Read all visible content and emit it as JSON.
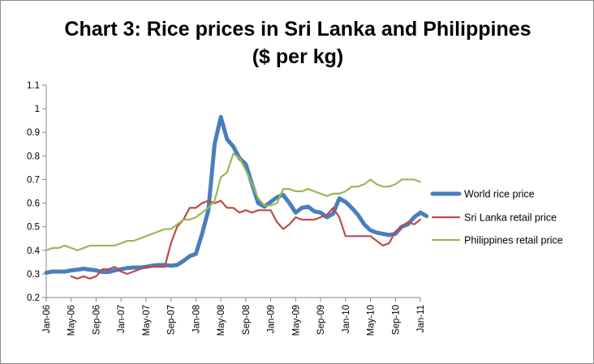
{
  "chart_data": {
    "type": "line",
    "title": "Chart 3: Rice prices in Sri Lanka and Philippines",
    "subtitle": "($ per kg)",
    "xlabel": "",
    "ylabel": "",
    "ylim": [
      0.2,
      1.1
    ],
    "yticks": [
      "0.2",
      "0.3",
      "0.4",
      "0.5",
      "0.6",
      "0.7",
      "0.8",
      "0.9",
      "1",
      "1.1"
    ],
    "grid": false,
    "legend_position": "right",
    "x_tick_labels": [
      "Jan-06",
      "May-06",
      "Sep-06",
      "Jan-07",
      "May-07",
      "Sep-07",
      "Jan-08",
      "May-08",
      "Sep-08",
      "Jan-09",
      "May-09",
      "Sep-09",
      "Jan-10",
      "May-10",
      "Sep-10",
      "Jan-11"
    ],
    "x_start": "2006-01",
    "series": [
      {
        "name": "World rice price",
        "color": "#4a7ebb",
        "start": "2006-01",
        "values": [
          0.305,
          0.31,
          0.31,
          0.31,
          0.315,
          0.318,
          0.322,
          0.318,
          0.315,
          0.308,
          0.308,
          0.315,
          0.32,
          0.325,
          0.327,
          0.327,
          0.33,
          0.335,
          0.338,
          0.338,
          0.335,
          0.338,
          0.355,
          0.375,
          0.385,
          0.47,
          0.57,
          0.85,
          0.965,
          0.87,
          0.84,
          0.79,
          0.765,
          0.68,
          0.6,
          0.585,
          0.605,
          0.625,
          0.635,
          0.6,
          0.56,
          0.58,
          0.585,
          0.565,
          0.56,
          0.54,
          0.555,
          0.62,
          0.605,
          0.58,
          0.55,
          0.51,
          0.485,
          0.475,
          0.47,
          0.465,
          0.47,
          0.5,
          0.51,
          0.54,
          0.56,
          0.545
        ]
      },
      {
        "name": "Sri Lanka retail price",
        "color": "#be4b48",
        "start": "2006-05",
        "values": [
          0.29,
          0.28,
          0.29,
          0.28,
          0.29,
          0.32,
          0.32,
          0.33,
          0.31,
          0.3,
          0.31,
          0.32,
          0.33,
          0.33,
          0.33,
          0.33,
          0.43,
          0.5,
          0.53,
          0.58,
          0.58,
          0.6,
          0.61,
          0.6,
          0.61,
          0.58,
          0.58,
          0.56,
          0.57,
          0.56,
          0.57,
          0.57,
          0.57,
          0.52,
          0.49,
          0.51,
          0.54,
          0.53,
          0.53,
          0.53,
          0.54,
          0.55,
          0.58,
          0.54,
          0.46,
          0.46,
          0.46,
          0.46,
          0.46,
          0.44,
          0.42,
          0.43,
          0.48,
          0.5,
          0.52,
          0.51,
          0.53
        ]
      },
      {
        "name": "Philippines retail price",
        "color": "#98b954",
        "start": "2006-01",
        "values": [
          0.4,
          0.41,
          0.41,
          0.42,
          0.41,
          0.4,
          0.41,
          0.42,
          0.42,
          0.42,
          0.42,
          0.42,
          0.43,
          0.44,
          0.44,
          0.45,
          0.46,
          0.47,
          0.48,
          0.49,
          0.49,
          0.51,
          0.53,
          0.53,
          0.54,
          0.56,
          0.58,
          0.61,
          0.71,
          0.73,
          0.81,
          0.79,
          0.74,
          0.68,
          0.62,
          0.59,
          0.59,
          0.6,
          0.66,
          0.66,
          0.65,
          0.65,
          0.66,
          0.65,
          0.64,
          0.63,
          0.64,
          0.64,
          0.65,
          0.67,
          0.67,
          0.68,
          0.7,
          0.68,
          0.67,
          0.67,
          0.68,
          0.7,
          0.7,
          0.7,
          0.69
        ]
      }
    ]
  }
}
